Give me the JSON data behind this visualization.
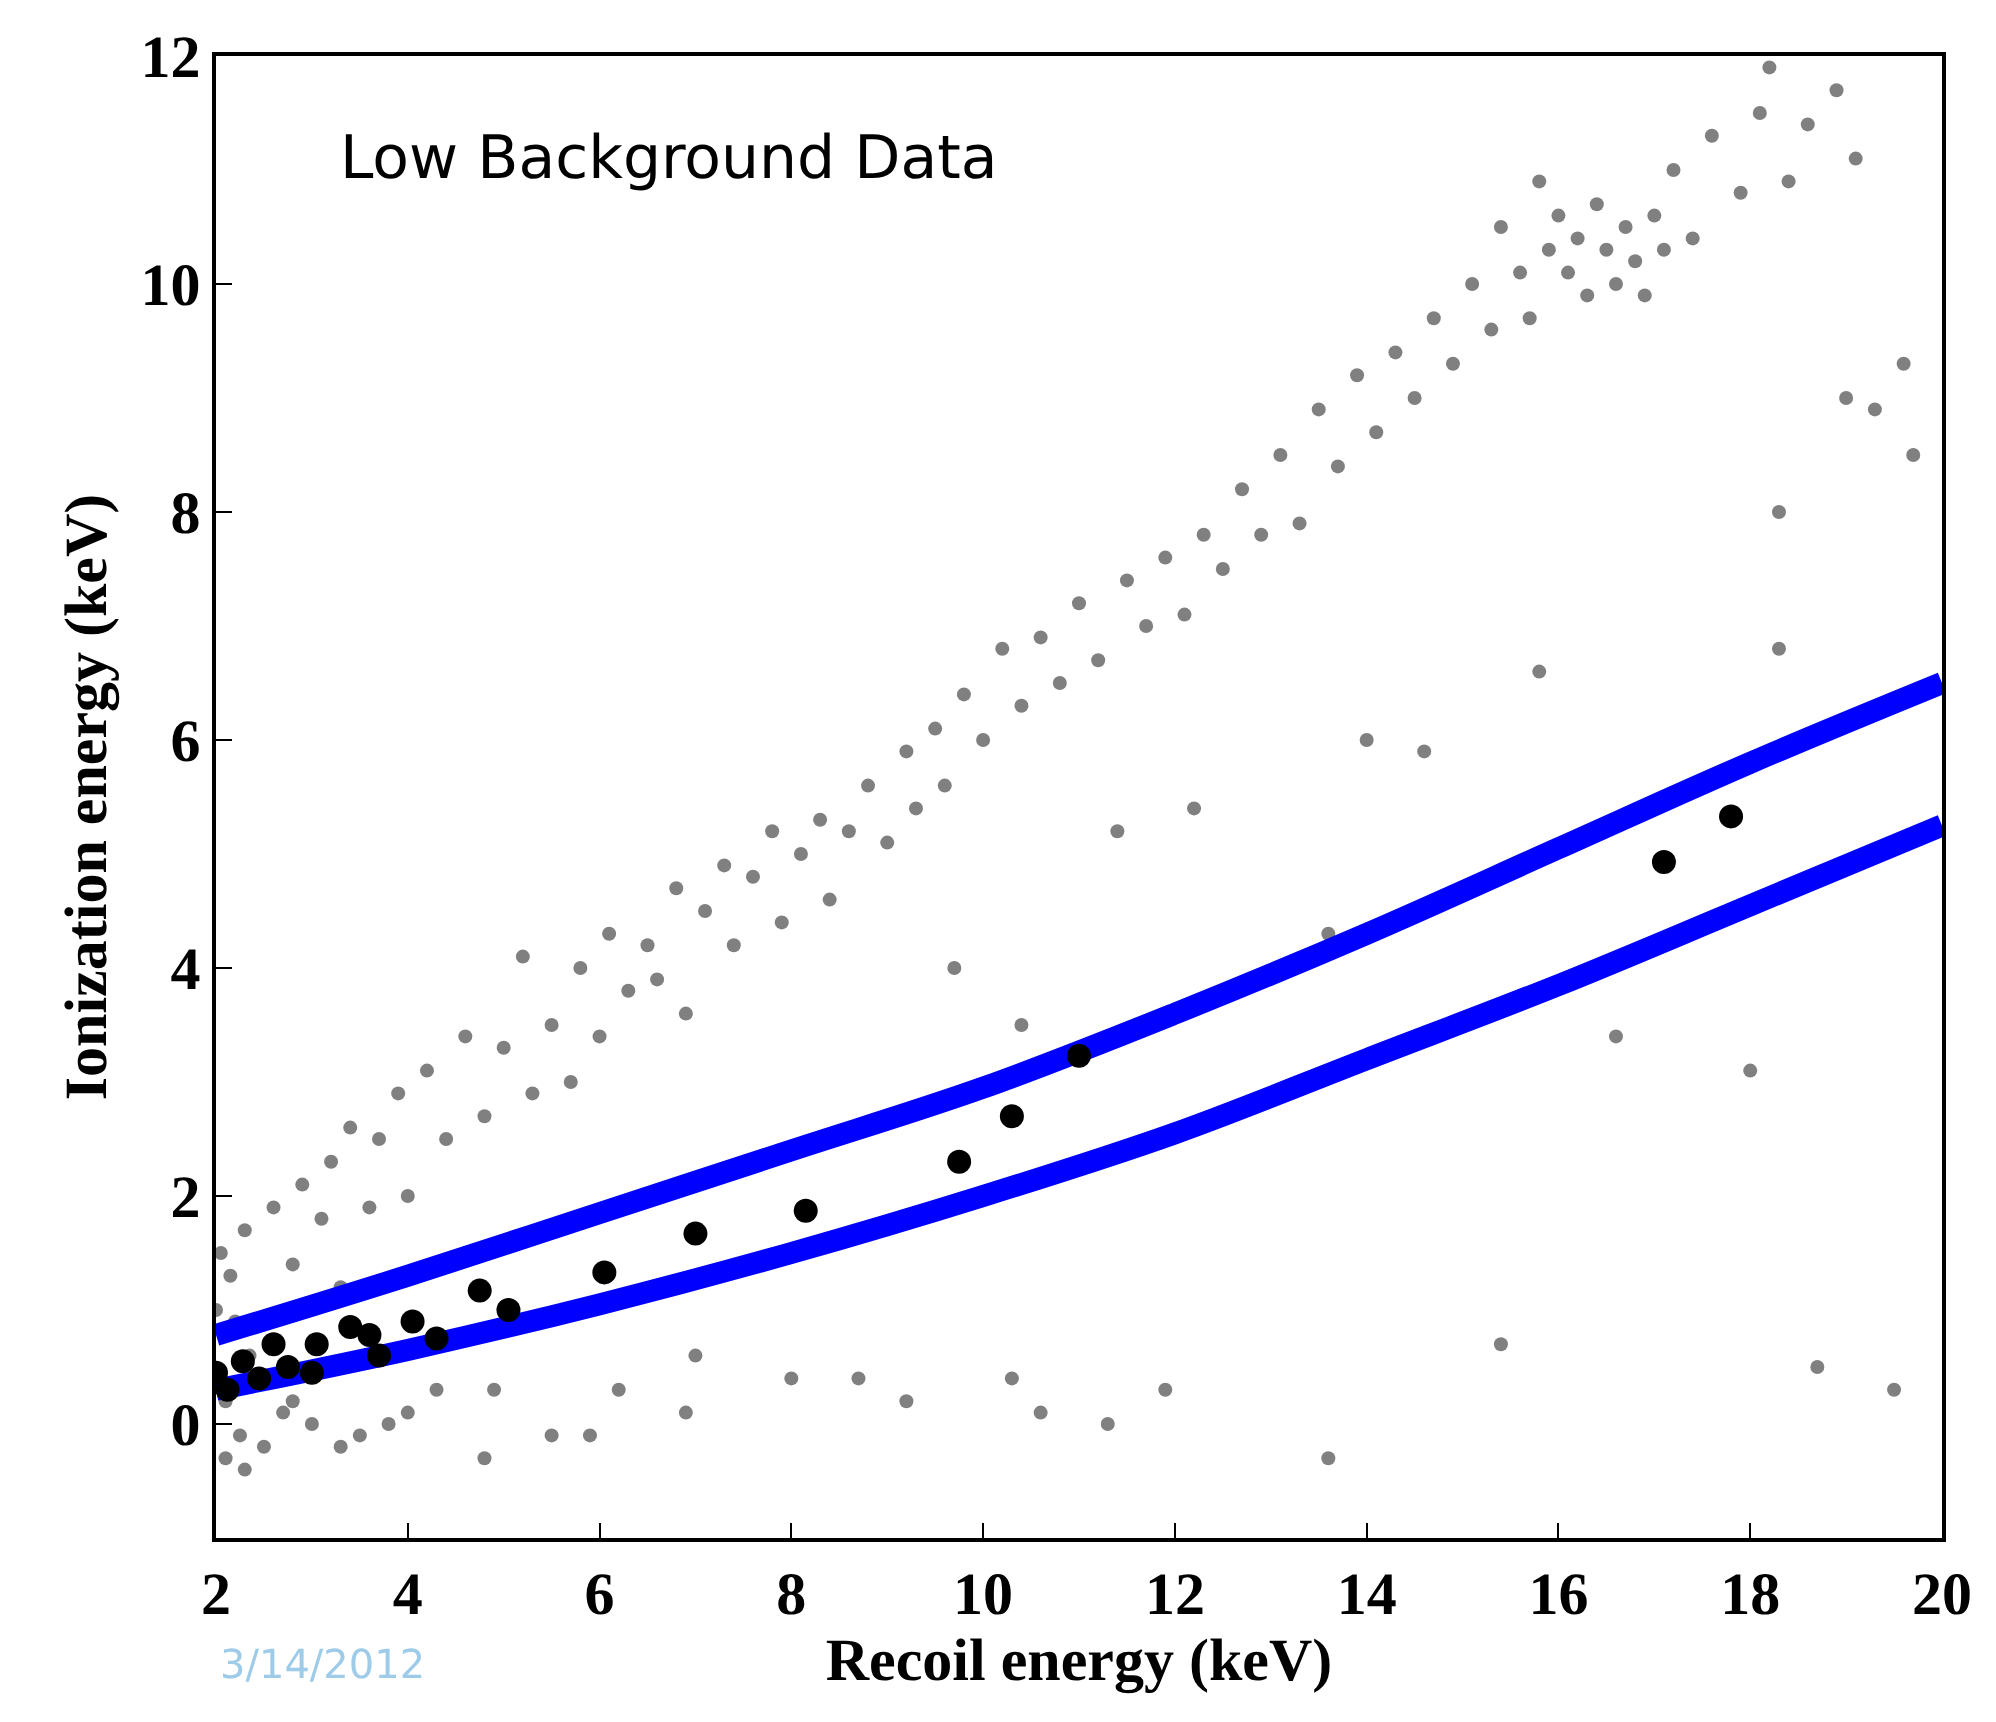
{
  "chart_data": {
    "type": "scatter",
    "xlabel": "Recoil energy (keV)",
    "ylabel": "Ionization energy (keV)",
    "xlim": [
      2,
      20
    ],
    "xticks": [
      2,
      4,
      6,
      8,
      10,
      12,
      14,
      16,
      18,
      20
    ],
    "ylim": [
      -1,
      12
    ],
    "yticks": [
      0,
      2,
      4,
      6,
      8,
      10,
      12
    ],
    "marker": "circle",
    "annotations": [
      "Low Background Data",
      "3/14/2012"
    ],
    "series": [
      {
        "color": "#808080",
        "x": [
          2.0,
          2.05,
          2.1,
          2.1,
          2.15,
          2.2,
          2.25,
          2.3,
          2.35,
          2.5,
          2.6,
          2.7,
          2.8,
          2.9,
          3.0,
          3.1,
          3.2,
          3.3,
          3.4,
          3.5,
          3.6,
          3.7,
          3.8,
          3.9,
          4.0,
          4.2,
          4.3,
          4.4,
          4.6,
          4.8,
          4.8,
          5.0,
          5.2,
          5.3,
          5.5,
          5.5,
          5.7,
          5.8,
          6.0,
          6.1,
          6.2,
          6.3,
          6.5,
          6.6,
          6.8,
          6.9,
          7.0,
          7.1,
          7.3,
          7.4,
          7.6,
          7.8,
          7.9,
          8.0,
          8.1,
          8.3,
          8.4,
          8.6,
          8.7,
          8.8,
          9.0,
          9.2,
          9.3,
          9.5,
          9.6,
          9.7,
          9.8,
          10.0,
          10.2,
          10.4,
          10.4,
          10.6,
          10.8,
          11.0,
          11.2,
          11.4,
          11.5,
          11.7,
          11.9,
          12.1,
          12.2,
          12.3,
          12.5,
          12.7,
          12.9,
          13.1,
          13.3,
          13.5,
          13.6,
          13.7,
          13.9,
          14.0,
          14.1,
          14.3,
          14.5,
          14.6,
          14.7,
          14.9,
          15.1,
          15.3,
          15.4,
          15.6,
          15.7,
          15.8,
          15.9,
          16.0,
          16.1,
          16.2,
          16.3,
          16.4,
          16.5,
          16.6,
          16.7,
          16.8,
          16.9,
          17.0,
          17.1,
          17.2,
          17.4,
          17.6,
          17.9,
          18.1,
          18.2,
          18.4,
          18.6,
          18.9,
          19.1,
          19.0,
          19.3,
          19.6,
          19.7,
          18.3,
          18.3,
          16.6,
          18.0,
          15.4,
          18.7,
          19.5,
          13.6,
          11.3,
          10.3,
          9.2,
          15.8,
          2.3,
          2.8,
          3.3,
          4.0,
          4.9,
          5.9,
          6.9,
          11.9,
          10.6
        ],
        "values": [
          1.0,
          1.5,
          0.2,
          -0.3,
          1.3,
          0.9,
          -0.1,
          1.7,
          0.6,
          -0.2,
          1.9,
          0.1,
          1.4,
          2.1,
          0.0,
          1.8,
          2.3,
          1.2,
          2.6,
          -0.1,
          1.9,
          2.5,
          0.0,
          2.9,
          2.0,
          3.1,
          0.3,
          2.5,
          3.4,
          2.7,
          -0.3,
          3.3,
          4.1,
          2.9,
          3.5,
          -0.1,
          3.0,
          4.0,
          3.4,
          4.3,
          0.3,
          3.8,
          4.2,
          3.9,
          4.7,
          3.6,
          0.6,
          4.5,
          4.9,
          4.2,
          4.8,
          5.2,
          4.4,
          0.4,
          5.0,
          5.3,
          4.6,
          5.2,
          0.4,
          5.6,
          5.1,
          5.9,
          5.4,
          6.1,
          5.6,
          4.0,
          6.4,
          6.0,
          6.8,
          3.5,
          6.3,
          6.9,
          6.5,
          7.2,
          6.7,
          5.2,
          7.4,
          7.0,
          7.6,
          7.1,
          5.4,
          7.8,
          7.5,
          8.2,
          7.8,
          8.5,
          7.9,
          8.9,
          4.3,
          8.4,
          9.2,
          6.0,
          8.7,
          9.4,
          9.0,
          5.9,
          9.7,
          9.3,
          10.0,
          9.6,
          10.5,
          10.1,
          9.7,
          10.9,
          10.3,
          10.6,
          10.1,
          10.4,
          9.9,
          10.7,
          10.3,
          10.0,
          10.5,
          10.2,
          9.9,
          10.6,
          10.3,
          11.0,
          10.4,
          11.3,
          10.8,
          11.5,
          11.9,
          10.9,
          11.4,
          11.7,
          11.1,
          9.0,
          8.9,
          9.3,
          8.5,
          8.0,
          6.8,
          3.4,
          3.1,
          0.7,
          0.5,
          0.3,
          -0.3,
          0.0,
          0.4,
          0.2,
          6.6,
          -0.4,
          0.2,
          -0.2,
          0.1,
          0.3,
          -0.1,
          0.1,
          0.3,
          0.1
        ]
      },
      {
        "type": "line",
        "marker": "none",
        "color": "#0000ff",
        "x": [
          2,
          4,
          6,
          8,
          10,
          12,
          14,
          16,
          18,
          20
        ],
        "values": [
          0.78,
          1.3,
          1.85,
          2.4,
          2.95,
          3.6,
          4.3,
          5.05,
          5.8,
          6.5
        ]
      },
      {
        "type": "line",
        "marker": "none",
        "color": "#0000ff",
        "x": [
          2,
          4,
          6,
          8,
          10,
          12,
          14,
          16,
          18,
          20
        ],
        "values": [
          0.3,
          0.65,
          1.05,
          1.5,
          2.0,
          2.55,
          3.2,
          3.85,
          4.55,
          5.25
        ]
      },
      {
        "color": "#000000",
        "x": [
          2.0,
          2.12,
          2.28,
          2.45,
          2.6,
          2.75,
          3.0,
          3.05,
          3.4,
          3.6,
          3.7,
          4.05,
          4.3,
          4.75,
          5.05,
          6.05,
          7.0,
          8.15,
          9.75,
          10.3,
          11.0,
          17.1,
          17.8
        ],
        "values": [
          0.45,
          0.3,
          0.55,
          0.4,
          0.7,
          0.5,
          0.45,
          0.7,
          0.85,
          0.78,
          0.6,
          0.9,
          0.75,
          1.17,
          1.0,
          1.33,
          1.67,
          1.87,
          2.3,
          2.7,
          3.23,
          4.93,
          5.33
        ]
      }
    ]
  }
}
